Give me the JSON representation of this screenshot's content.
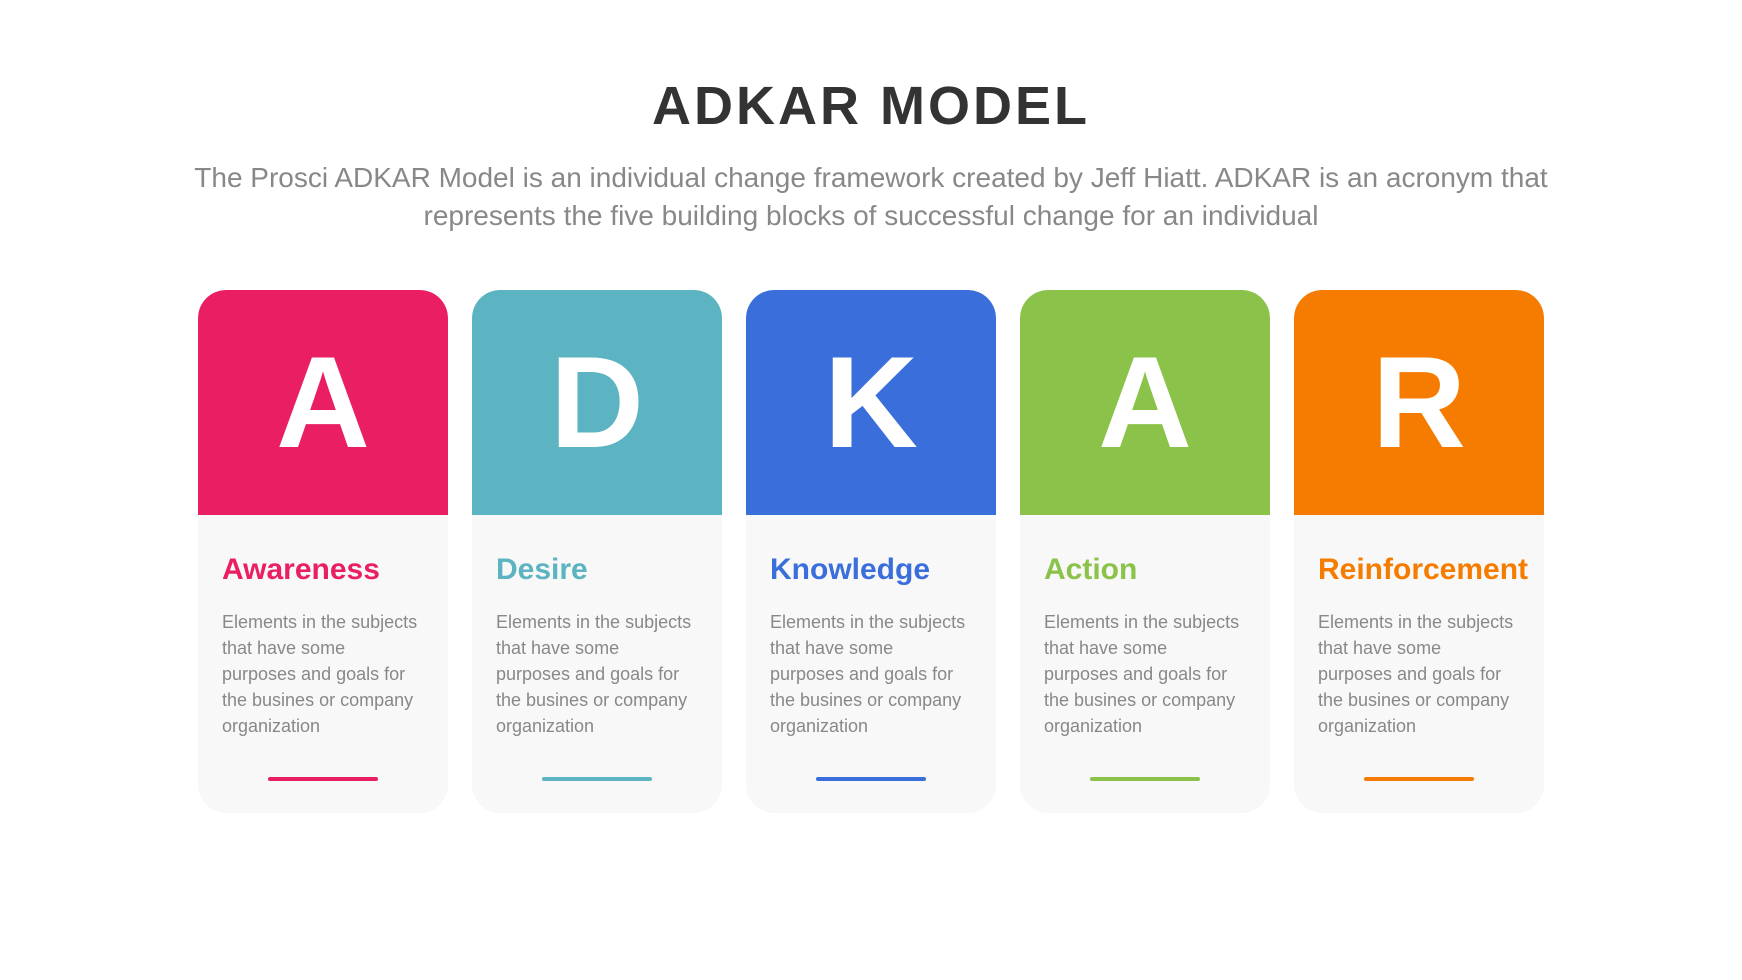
{
  "header": {
    "title": "ADKAR MODEL",
    "title_color": "#333333",
    "title_fontsize": 54,
    "subtitle": "The Prosci ADKAR Model is an individual change framework created by Jeff Hiatt. ADKAR is an acronym that represents the five building blocks of successful change for an individual",
    "subtitle_color": "#888888",
    "subtitle_fontsize": 28
  },
  "layout": {
    "type": "infographic",
    "background_color": "#ffffff",
    "card_background": "#f8f8f8",
    "card_border_radius": 28,
    "card_gap": 24,
    "card_header_height": 225,
    "letter_fontsize": 130,
    "letter_color": "#ffffff",
    "card_title_fontsize": 30,
    "description_fontsize": 18,
    "description_color": "#888888",
    "underline_width": 110,
    "underline_height": 4
  },
  "cards": [
    {
      "letter": "A",
      "title": "Awareness",
      "description": "Elements in the subjects that have some purposes and goals for the  busines or company organization",
      "color": "#e91e63"
    },
    {
      "letter": "D",
      "title": "Desire",
      "description": "Elements in the subjects that have some purposes and goals for the  busines or company organization",
      "color": "#5cb3c1"
    },
    {
      "letter": "K",
      "title": "Knowledge",
      "description": "Elements in the subjects that have some purposes and goals for the  busines or company organization",
      "color": "#3a6fdb"
    },
    {
      "letter": "A",
      "title": "Action",
      "description": "Elements in the subjects that have some purposes and goals for the  busines or company organization",
      "color": "#8bc34a"
    },
    {
      "letter": "R",
      "title": "Reinforcement",
      "description": "Elements in the subjects that have some purposes and goals for the  busines or company organization",
      "color": "#f57c00"
    }
  ]
}
